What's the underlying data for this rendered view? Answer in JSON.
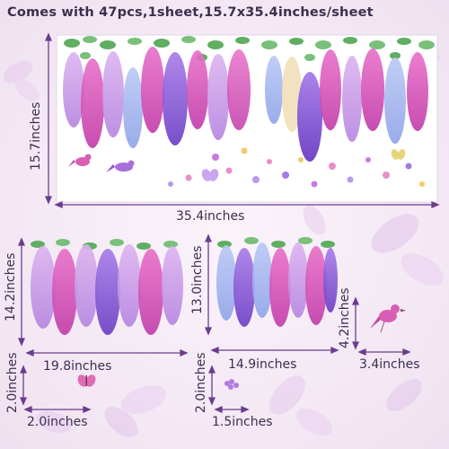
{
  "header": {
    "text": "Comes with 47pcs,1sheet,15.7x35.4inches/sheet"
  },
  "colors": {
    "background": "#f3eaf3",
    "sheet": "#ffffff",
    "dimension_line": "#6a3d8f",
    "label_text": "#3b2f4f",
    "flower_pink": "#d94fb7",
    "flower_purple": "#8a4fd6",
    "flower_lavender": "#b59ae6",
    "flower_blue": "#9fb6f0",
    "leaf_green": "#5fae62"
  },
  "sheet_main": {
    "width_label": "35.4inches",
    "height_label": "15.7inches"
  },
  "panel_left": {
    "width_label": "19.8inches",
    "height_label": "14.2inches"
  },
  "panel_right": {
    "width_label": "14.9inches",
    "height_label": "13.0inches"
  },
  "bird": {
    "width_label": "3.4inches",
    "height_label": "4.2inches"
  },
  "butterfly": {
    "width_label": "2.0inches",
    "height_label": "2.0inches"
  },
  "petal": {
    "width_label": "1.5inches",
    "height_label": "2.0inches"
  }
}
